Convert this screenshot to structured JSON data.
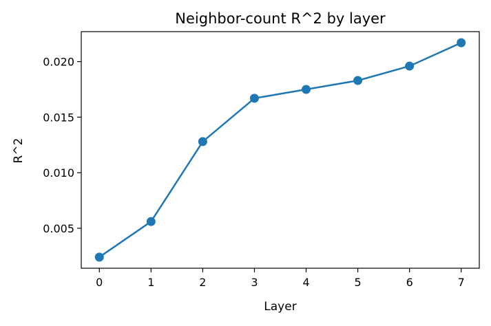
{
  "chart_data": {
    "type": "line",
    "title": "Neighbor-count R^2 by layer",
    "xlabel": "Layer",
    "ylabel": "R^2",
    "x": [
      0,
      1,
      2,
      3,
      4,
      5,
      6,
      7
    ],
    "series": [
      {
        "values": [
          0.0024,
          0.0056,
          0.0128,
          0.0167,
          0.0175,
          0.0183,
          0.0196,
          0.0217
        ],
        "color": "#1f77b4",
        "marker": "circle"
      }
    ],
    "xticks": [
      "0",
      "1",
      "2",
      "3",
      "4",
      "5",
      "6",
      "7"
    ],
    "yticks": [
      "0.005",
      "0.010",
      "0.015",
      "0.020"
    ],
    "ytick_values": [
      0.005,
      0.01,
      0.015,
      0.02
    ],
    "xlim": [
      -0.35,
      7.35
    ],
    "ylim": [
      0.0014,
      0.0227
    ],
    "grid": false,
    "legend": "none"
  }
}
